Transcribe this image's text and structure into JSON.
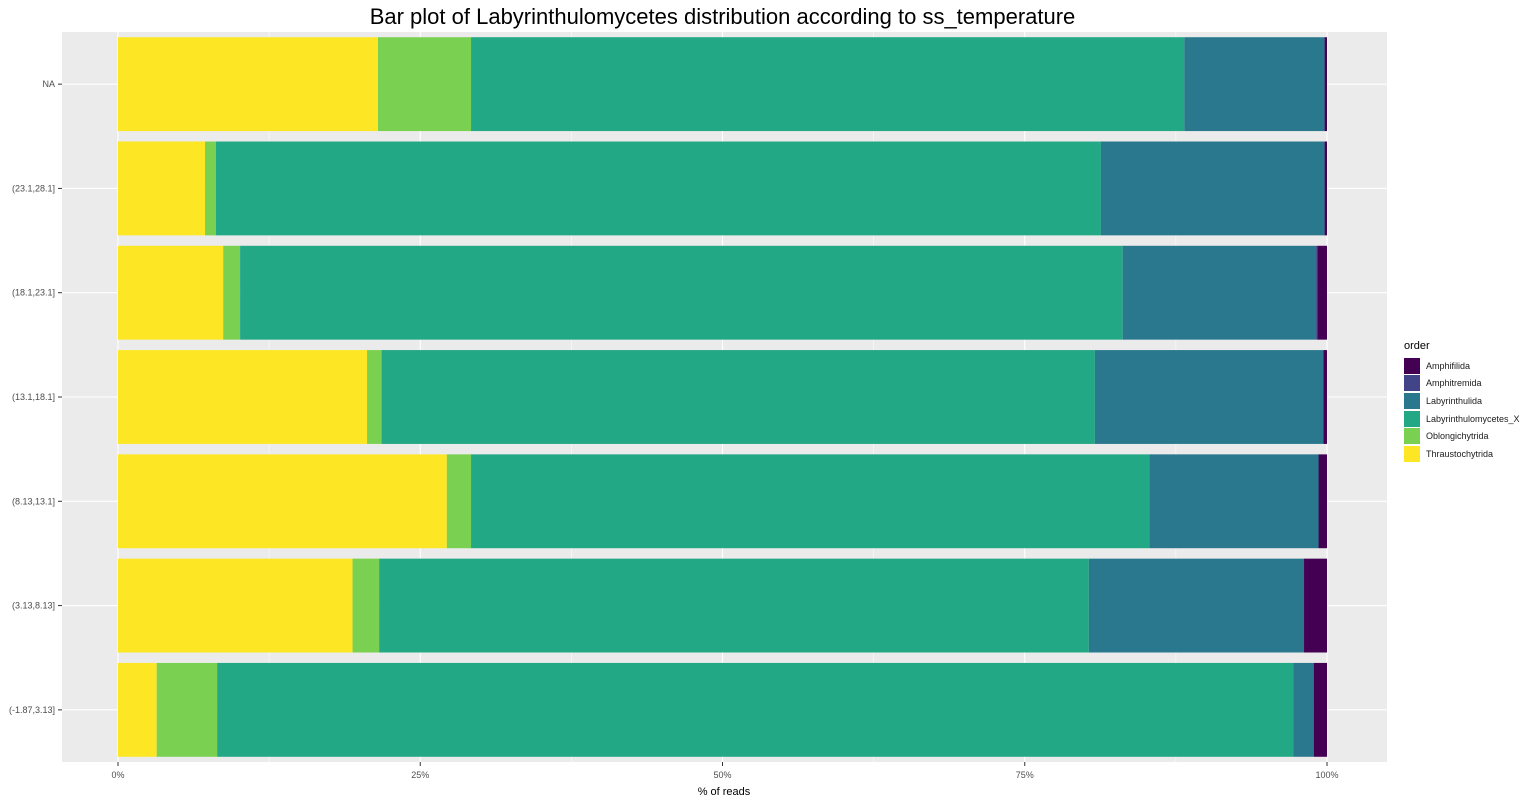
{
  "chart_data": {
    "type": "bar",
    "orientation": "horizontal",
    "stacked": true,
    "title": "Bar plot of Labyrinthulomycetes distribution according to ss_temperature",
    "xlabel": "% of reads",
    "ylabel": "",
    "xlim": [
      0,
      1
    ],
    "x_ticks": [
      "0%",
      "25%",
      "50%",
      "75%",
      "100%"
    ],
    "grid": true,
    "legend_position": "right",
    "legend_title": "order",
    "categories": [
      "NA",
      "(23.1,28.1]",
      "(18.1,23.1]",
      "(13.1,18.1]",
      "(8.13,13.1]",
      "(3.13,8.13]",
      "(-1.87,3.13]"
    ],
    "series": [
      {
        "name": "Thraustochytrida",
        "color": "#FDE725",
        "values": [
          0.215,
          0.072,
          0.087,
          0.206,
          0.272,
          0.194,
          0.032
        ]
      },
      {
        "name": "Oblongichytrida",
        "color": "#7AD151",
        "values": [
          0.077,
          0.009,
          0.014,
          0.012,
          0.02,
          0.022,
          0.05
        ]
      },
      {
        "name": "Labyrinthulomycetes_X",
        "color": "#22A884",
        "values": [
          0.59,
          0.732,
          0.73,
          0.59,
          0.561,
          0.587,
          0.89
        ]
      },
      {
        "name": "Labyrinthulida",
        "color": "#2A788E",
        "values": [
          0.116,
          0.185,
          0.16,
          0.189,
          0.14,
          0.178,
          0.017
        ]
      },
      {
        "name": "Amphitremida",
        "color": "#414487",
        "values": [
          0.0,
          0.0,
          0.001,
          0.0,
          0.0,
          0.0,
          0.0
        ]
      },
      {
        "name": "Amphifilida",
        "color": "#440154",
        "values": [
          0.002,
          0.002,
          0.008,
          0.003,
          0.007,
          0.019,
          0.011
        ]
      }
    ],
    "legend_order": [
      "Amphifilida",
      "Amphitremida",
      "Labyrinthulida",
      "Labyrinthulomycetes_X",
      "Oblongichytrida",
      "Thraustochytrida"
    ]
  }
}
